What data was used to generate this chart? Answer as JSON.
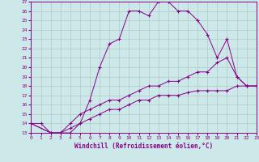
{
  "xlabel": "Windchill (Refroidissement éolien,°C)",
  "background_color": "#cce8e8",
  "grid_color": "#b0c8c8",
  "line_color": "#880088",
  "xlim": [
    0,
    23
  ],
  "ylim": [
    13,
    27
  ],
  "yticks": [
    13,
    14,
    15,
    16,
    17,
    18,
    19,
    20,
    21,
    22,
    23,
    24,
    25,
    26,
    27
  ],
  "xticks": [
    0,
    1,
    2,
    3,
    4,
    5,
    6,
    7,
    8,
    9,
    10,
    11,
    12,
    13,
    14,
    15,
    16,
    17,
    18,
    19,
    20,
    21,
    22,
    23
  ],
  "c1x": [
    0,
    1,
    2,
    3,
    4,
    5,
    6,
    7,
    8,
    9,
    10,
    11,
    12,
    13,
    14,
    15,
    16,
    17,
    18,
    19,
    20,
    21,
    22,
    23
  ],
  "c1y": [
    14,
    14,
    13,
    13,
    13,
    14,
    16.5,
    20,
    22.5,
    23.0,
    26,
    26,
    25.5,
    27,
    27,
    26,
    26,
    25,
    23.5,
    21,
    23,
    19,
    18,
    18
  ],
  "c2x": [
    0,
    2,
    3,
    4,
    5,
    6,
    7,
    8,
    9,
    10,
    11,
    12,
    13,
    14,
    15,
    16,
    17,
    18,
    19,
    20,
    21,
    22,
    23
  ],
  "c2y": [
    14,
    13,
    13,
    14,
    15,
    15.5,
    16,
    16.5,
    16.5,
    17,
    17.5,
    18,
    18,
    18.5,
    18.5,
    19,
    19.5,
    19.5,
    20.5,
    21,
    19,
    18,
    18
  ],
  "c3x": [
    0,
    2,
    3,
    4,
    5,
    6,
    7,
    8,
    9,
    10,
    11,
    12,
    13,
    14,
    15,
    16,
    17,
    18,
    19,
    20,
    21,
    22,
    23
  ],
  "c3y": [
    14,
    13,
    13,
    13.5,
    14.0,
    14.5,
    15.0,
    15.5,
    15.5,
    16.0,
    16.5,
    16.5,
    17.0,
    17.0,
    17.0,
    17.3,
    17.5,
    17.5,
    17.5,
    17.5,
    18,
    18,
    18
  ]
}
